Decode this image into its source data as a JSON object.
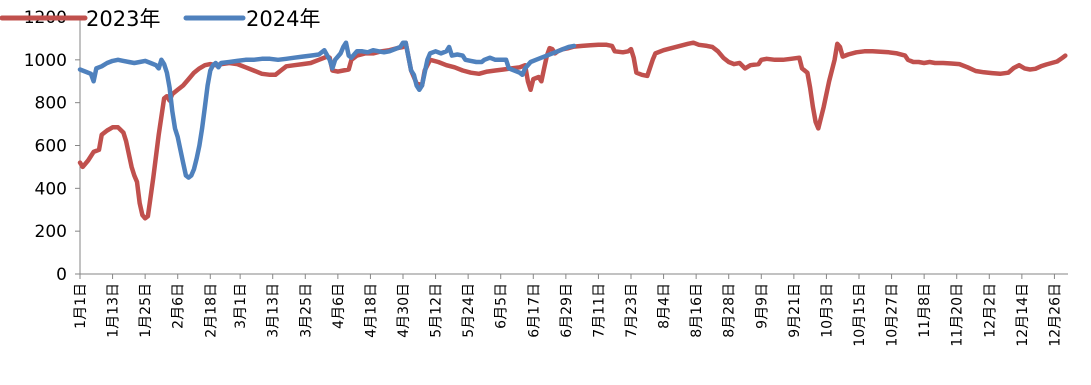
{
  "chart_data": {
    "type": "line",
    "title": "",
    "xlabel": "",
    "ylabel": "",
    "ylim": [
      0,
      1200
    ],
    "yticks": [
      0,
      200,
      400,
      600,
      800,
      1000,
      1200
    ],
    "grid": false,
    "legend_position": "top-left",
    "x_domain": [
      1,
      365
    ],
    "x_ticks": [
      {
        "day": 1,
        "label": "1月1日"
      },
      {
        "day": 13,
        "label": "1月13日"
      },
      {
        "day": 25,
        "label": "1月25日"
      },
      {
        "day": 37,
        "label": "2月6日"
      },
      {
        "day": 49,
        "label": "2月18日"
      },
      {
        "day": 60,
        "label": "3月1日"
      },
      {
        "day": 72,
        "label": "3月13日"
      },
      {
        "day": 84,
        "label": "3月25日"
      },
      {
        "day": 96,
        "label": "4月6日"
      },
      {
        "day": 108,
        "label": "4月18日"
      },
      {
        "day": 120,
        "label": "4月30日"
      },
      {
        "day": 132,
        "label": "5月12日"
      },
      {
        "day": 144,
        "label": "5月24日"
      },
      {
        "day": 156,
        "label": "6月5日"
      },
      {
        "day": 168,
        "label": "6月17日"
      },
      {
        "day": 180,
        "label": "6月29日"
      },
      {
        "day": 192,
        "label": "7月11日"
      },
      {
        "day": 204,
        "label": "7月23日"
      },
      {
        "day": 216,
        "label": "8月4日"
      },
      {
        "day": 228,
        "label": "8月16日"
      },
      {
        "day": 240,
        "label": "8月28日"
      },
      {
        "day": 252,
        "label": "9月9日"
      },
      {
        "day": 264,
        "label": "9月21日"
      },
      {
        "day": 276,
        "label": "10月3日"
      },
      {
        "day": 288,
        "label": "10月15日"
      },
      {
        "day": 300,
        "label": "10月27日"
      },
      {
        "day": 312,
        "label": "11月8日"
      },
      {
        "day": 324,
        "label": "11月20日"
      },
      {
        "day": 336,
        "label": "12月2日"
      },
      {
        "day": 348,
        "label": "12月14日"
      },
      {
        "day": 360,
        "label": "12月26日"
      }
    ],
    "series": [
      {
        "name": "2023年",
        "color": "#C0504D",
        "points": [
          [
            1,
            520
          ],
          [
            2,
            500
          ],
          [
            4,
            530
          ],
          [
            6,
            570
          ],
          [
            8,
            580
          ],
          [
            9,
            650
          ],
          [
            11,
            670
          ],
          [
            13,
            685
          ],
          [
            15,
            685
          ],
          [
            17,
            660
          ],
          [
            18,
            620
          ],
          [
            20,
            500
          ],
          [
            21,
            460
          ],
          [
            22,
            430
          ],
          [
            23,
            330
          ],
          [
            24,
            275
          ],
          [
            25,
            260
          ],
          [
            26,
            270
          ],
          [
            28,
            450
          ],
          [
            30,
            650
          ],
          [
            32,
            820
          ],
          [
            33,
            830
          ],
          [
            34,
            810
          ],
          [
            35,
            840
          ],
          [
            37,
            860
          ],
          [
            39,
            880
          ],
          [
            41,
            910
          ],
          [
            43,
            940
          ],
          [
            45,
            960
          ],
          [
            47,
            975
          ],
          [
            49,
            980
          ],
          [
            51,
            975
          ],
          [
            53,
            980
          ],
          [
            56,
            985
          ],
          [
            59,
            980
          ],
          [
            62,
            965
          ],
          [
            65,
            950
          ],
          [
            68,
            935
          ],
          [
            71,
            930
          ],
          [
            73,
            930
          ],
          [
            75,
            950
          ],
          [
            77,
            970
          ],
          [
            80,
            975
          ],
          [
            83,
            980
          ],
          [
            86,
            985
          ],
          [
            89,
            1000
          ],
          [
            92,
            1015
          ],
          [
            93,
            1010
          ],
          [
            94,
            950
          ],
          [
            96,
            945
          ],
          [
            98,
            950
          ],
          [
            100,
            955
          ],
          [
            101,
            1000
          ],
          [
            103,
            1020
          ],
          [
            106,
            1030
          ],
          [
            109,
            1030
          ],
          [
            112,
            1040
          ],
          [
            115,
            1045
          ],
          [
            118,
            1055
          ],
          [
            120,
            1060
          ],
          [
            121,
            1080
          ],
          [
            123,
            950
          ],
          [
            125,
            890
          ],
          [
            127,
            880
          ],
          [
            128,
            950
          ],
          [
            130,
            1000
          ],
          [
            133,
            990
          ],
          [
            136,
            975
          ],
          [
            139,
            965
          ],
          [
            142,
            950
          ],
          [
            145,
            940
          ],
          [
            148,
            935
          ],
          [
            151,
            945
          ],
          [
            154,
            950
          ],
          [
            157,
            955
          ],
          [
            160,
            960
          ],
          [
            163,
            965
          ],
          [
            165,
            975
          ],
          [
            166,
            900
          ],
          [
            167,
            860
          ],
          [
            168,
            910
          ],
          [
            170,
            920
          ],
          [
            171,
            900
          ],
          [
            172,
            960
          ],
          [
            173,
            1020
          ],
          [
            174,
            1055
          ],
          [
            175,
            1050
          ],
          [
            176,
            1030
          ],
          [
            177,
            1040
          ],
          [
            179,
            1050
          ],
          [
            181,
            1055
          ],
          [
            183,
            1062
          ],
          [
            186,
            1065
          ],
          [
            189,
            1068
          ],
          [
            192,
            1070
          ],
          [
            195,
            1070
          ],
          [
            197,
            1065
          ],
          [
            198,
            1040
          ],
          [
            201,
            1035
          ],
          [
            203,
            1040
          ],
          [
            204,
            1050
          ],
          [
            205,
            1010
          ],
          [
            206,
            940
          ],
          [
            208,
            930
          ],
          [
            210,
            925
          ],
          [
            212,
            1000
          ],
          [
            213,
            1030
          ],
          [
            216,
            1045
          ],
          [
            219,
            1055
          ],
          [
            222,
            1065
          ],
          [
            225,
            1075
          ],
          [
            227,
            1080
          ],
          [
            229,
            1070
          ],
          [
            232,
            1065
          ],
          [
            234,
            1060
          ],
          [
            236,
            1040
          ],
          [
            238,
            1010
          ],
          [
            240,
            990
          ],
          [
            242,
            980
          ],
          [
            244,
            985
          ],
          [
            246,
            960
          ],
          [
            248,
            975
          ],
          [
            251,
            980
          ],
          [
            252,
            1000
          ],
          [
            254,
            1005
          ],
          [
            257,
            1000
          ],
          [
            260,
            1000
          ],
          [
            263,
            1005
          ],
          [
            266,
            1010
          ],
          [
            267,
            960
          ],
          [
            269,
            940
          ],
          [
            270,
            870
          ],
          [
            271,
            780
          ],
          [
            272,
            710
          ],
          [
            273,
            680
          ],
          [
            275,
            780
          ],
          [
            277,
            900
          ],
          [
            279,
            1000
          ],
          [
            280,
            1075
          ],
          [
            281,
            1060
          ],
          [
            282,
            1015
          ],
          [
            284,
            1025
          ],
          [
            287,
            1035
          ],
          [
            290,
            1040
          ],
          [
            293,
            1040
          ],
          [
            296,
            1038
          ],
          [
            299,
            1035
          ],
          [
            302,
            1030
          ],
          [
            305,
            1020
          ],
          [
            306,
            1000
          ],
          [
            308,
            990
          ],
          [
            310,
            990
          ],
          [
            312,
            985
          ],
          [
            314,
            990
          ],
          [
            316,
            985
          ],
          [
            319,
            985
          ],
          [
            322,
            983
          ],
          [
            325,
            980
          ],
          [
            328,
            965
          ],
          [
            331,
            948
          ],
          [
            334,
            942
          ],
          [
            337,
            938
          ],
          [
            340,
            935
          ],
          [
            343,
            940
          ],
          [
            345,
            962
          ],
          [
            347,
            975
          ],
          [
            349,
            960
          ],
          [
            351,
            955
          ],
          [
            353,
            958
          ],
          [
            355,
            970
          ],
          [
            357,
            978
          ],
          [
            359,
            985
          ],
          [
            361,
            992
          ],
          [
            363,
            1010
          ],
          [
            364,
            1020
          ]
        ]
      },
      {
        "name": "2024年",
        "color": "#4F81BD",
        "points": [
          [
            1,
            955
          ],
          [
            3,
            945
          ],
          [
            5,
            935
          ],
          [
            6,
            900
          ],
          [
            7,
            960
          ],
          [
            9,
            970
          ],
          [
            11,
            985
          ],
          [
            13,
            995
          ],
          [
            15,
            1000
          ],
          [
            17,
            995
          ],
          [
            19,
            990
          ],
          [
            21,
            985
          ],
          [
            23,
            990
          ],
          [
            25,
            995
          ],
          [
            27,
            985
          ],
          [
            29,
            975
          ],
          [
            30,
            960
          ],
          [
            31,
            1000
          ],
          [
            32,
            980
          ],
          [
            33,
            940
          ],
          [
            34,
            870
          ],
          [
            35,
            760
          ],
          [
            36,
            680
          ],
          [
            37,
            640
          ],
          [
            38,
            580
          ],
          [
            39,
            520
          ],
          [
            40,
            460
          ],
          [
            41,
            450
          ],
          [
            42,
            460
          ],
          [
            43,
            490
          ],
          [
            44,
            540
          ],
          [
            45,
            600
          ],
          [
            46,
            680
          ],
          [
            47,
            780
          ],
          [
            48,
            880
          ],
          [
            49,
            950
          ],
          [
            50,
            975
          ],
          [
            51,
            985
          ],
          [
            52,
            965
          ],
          [
            53,
            985
          ],
          [
            56,
            990
          ],
          [
            59,
            995
          ],
          [
            62,
            1000
          ],
          [
            65,
            1000
          ],
          [
            68,
            1005
          ],
          [
            71,
            1005
          ],
          [
            74,
            1000
          ],
          [
            77,
            1005
          ],
          [
            80,
            1010
          ],
          [
            83,
            1015
          ],
          [
            86,
            1020
          ],
          [
            89,
            1025
          ],
          [
            91,
            1045
          ],
          [
            93,
            1000
          ],
          [
            94,
            960
          ],
          [
            95,
            1000
          ],
          [
            97,
            1030
          ],
          [
            98,
            1060
          ],
          [
            99,
            1080
          ],
          [
            100,
            1020
          ],
          [
            101,
            1010
          ],
          [
            103,
            1040
          ],
          [
            105,
            1040
          ],
          [
            107,
            1035
          ],
          [
            109,
            1045
          ],
          [
            111,
            1040
          ],
          [
            113,
            1035
          ],
          [
            115,
            1040
          ],
          [
            117,
            1050
          ],
          [
            119,
            1060
          ],
          [
            120,
            1080
          ],
          [
            121,
            1080
          ],
          [
            123,
            950
          ],
          [
            124,
            930
          ],
          [
            125,
            880
          ],
          [
            126,
            860
          ],
          [
            127,
            880
          ],
          [
            129,
            1000
          ],
          [
            130,
            1030
          ],
          [
            132,
            1040
          ],
          [
            134,
            1030
          ],
          [
            136,
            1040
          ],
          [
            137,
            1060
          ],
          [
            138,
            1020
          ],
          [
            140,
            1025
          ],
          [
            142,
            1020
          ],
          [
            143,
            1000
          ],
          [
            145,
            995
          ],
          [
            147,
            990
          ],
          [
            149,
            990
          ],
          [
            150,
            1000
          ],
          [
            152,
            1010
          ],
          [
            154,
            1000
          ],
          [
            156,
            1000
          ],
          [
            158,
            1000
          ],
          [
            159,
            960
          ],
          [
            161,
            950
          ],
          [
            163,
            940
          ],
          [
            164,
            930
          ],
          [
            165,
            960
          ],
          [
            167,
            990
          ],
          [
            169,
            1000
          ],
          [
            171,
            1010
          ],
          [
            173,
            1020
          ],
          [
            175,
            1030
          ],
          [
            177,
            1040
          ],
          [
            179,
            1050
          ],
          [
            181,
            1060
          ],
          [
            183,
            1065
          ]
        ]
      }
    ]
  }
}
